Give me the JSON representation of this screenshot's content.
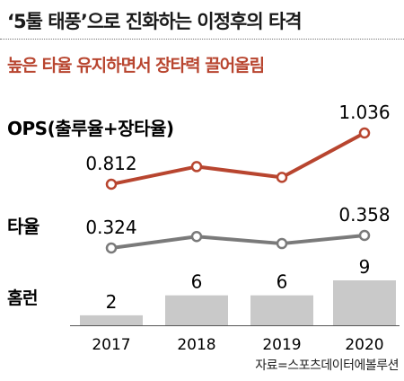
{
  "title": "‘5툴 태풍’으로 진화하는 이정후의 타격",
  "subtitle": "높은 타율 유지하면서 장타력 끌어올림",
  "source": "자료=스포츠데이터에볼루션",
  "colors": {
    "ops": "#b8452f",
    "avg": "#7a7a7a",
    "hr": "#c9c9c9",
    "subtitle": "#b8452f"
  },
  "chart_data": {
    "type": "line+bar",
    "categories": [
      "2017",
      "2018",
      "2019",
      "2020"
    ],
    "series": [
      {
        "name": "OPS(출루율+장타율)",
        "type": "line",
        "values": [
          0.812,
          0.889,
          0.842,
          1.036
        ],
        "data_labels": [
          "0.812",
          "",
          "",
          "1.036"
        ]
      },
      {
        "name": "타율",
        "type": "line",
        "values": [
          0.324,
          0.355,
          0.336,
          0.358
        ],
        "data_labels": [
          "0.324",
          "",
          "",
          "0.358"
        ]
      },
      {
        "name": "홈런",
        "type": "bar",
        "values": [
          2,
          6,
          6,
          9
        ],
        "data_labels": [
          "2",
          "6",
          "6",
          "9"
        ]
      }
    ]
  }
}
